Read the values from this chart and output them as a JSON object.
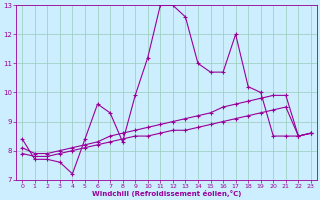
{
  "xlabel": "Windchill (Refroidissement éolien,°C)",
  "background_color": "#cceeff",
  "grid_color": "#99ccbb",
  "line_color": "#990099",
  "xlim": [
    -0.5,
    23.5
  ],
  "ylim": [
    7,
    13
  ],
  "xticks": [
    0,
    1,
    2,
    3,
    4,
    5,
    6,
    7,
    8,
    9,
    10,
    11,
    12,
    13,
    14,
    15,
    16,
    17,
    18,
    19,
    20,
    21,
    22,
    23
  ],
  "yticks": [
    7,
    8,
    9,
    10,
    11,
    12,
    13
  ],
  "line1_x": [
    0,
    1,
    2,
    3,
    4,
    5,
    6,
    7,
    8,
    9,
    10,
    11,
    12,
    13,
    14,
    15,
    16,
    17,
    18,
    19,
    20,
    21,
    22,
    23
  ],
  "line1_y": [
    8.4,
    7.7,
    7.7,
    7.6,
    7.2,
    8.4,
    9.6,
    9.3,
    8.3,
    9.9,
    11.2,
    13.0,
    13.0,
    12.6,
    11.0,
    10.7,
    10.7,
    12.0,
    10.2,
    10.0,
    8.5,
    8.5,
    8.5,
    8.6
  ],
  "line2_x": [
    0,
    1,
    2,
    3,
    4,
    5,
    6,
    7,
    8,
    9,
    10,
    11,
    12,
    13,
    14,
    15,
    16,
    17,
    18,
    19,
    20,
    21,
    22,
    23
  ],
  "line2_y": [
    8.1,
    7.9,
    7.9,
    8.0,
    8.1,
    8.2,
    8.3,
    8.5,
    8.6,
    8.7,
    8.8,
    8.9,
    9.0,
    9.1,
    9.2,
    9.3,
    9.5,
    9.6,
    9.7,
    9.8,
    9.9,
    9.9,
    8.5,
    8.6
  ],
  "line3_x": [
    0,
    1,
    2,
    3,
    4,
    5,
    6,
    7,
    8,
    9,
    10,
    11,
    12,
    13,
    14,
    15,
    16,
    17,
    18,
    19,
    20,
    21,
    22,
    23
  ],
  "line3_y": [
    7.9,
    7.8,
    7.8,
    7.9,
    8.0,
    8.1,
    8.2,
    8.3,
    8.4,
    8.5,
    8.5,
    8.6,
    8.7,
    8.7,
    8.8,
    8.9,
    9.0,
    9.1,
    9.2,
    9.3,
    9.4,
    9.5,
    8.5,
    8.6
  ]
}
